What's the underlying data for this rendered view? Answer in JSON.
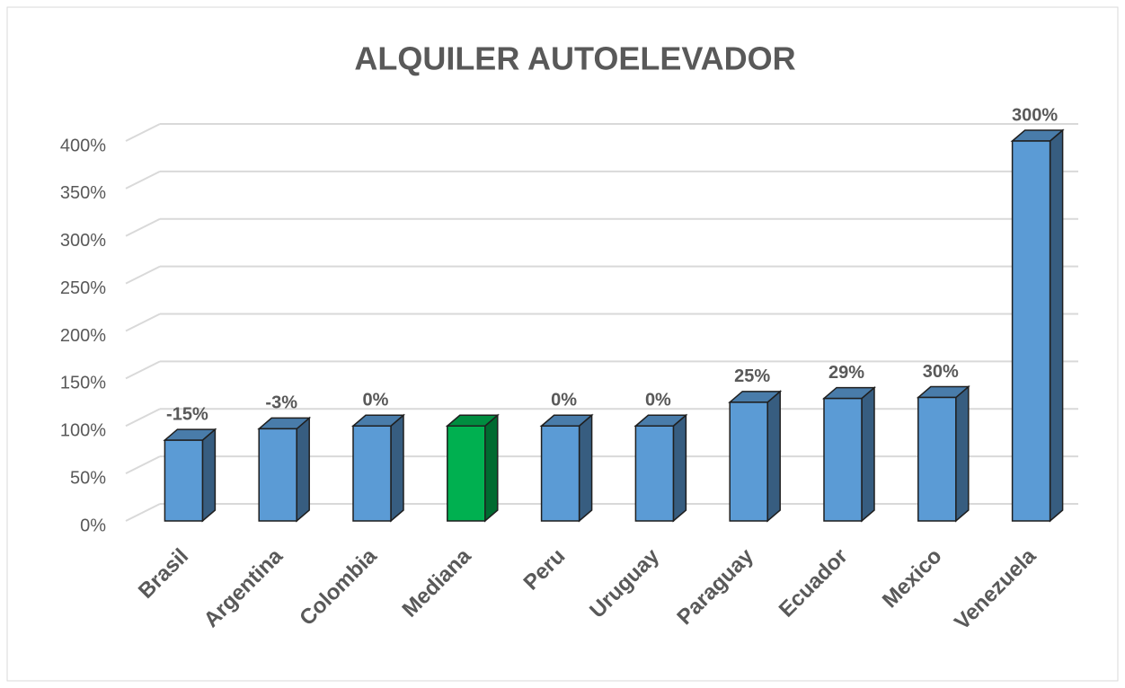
{
  "chart_data": {
    "type": "bar3d",
    "title": "ALQUILER AUTOELEVADOR",
    "categories": [
      "Brasil",
      "Argentina",
      "Colombia",
      "Mediana",
      "Peru",
      "Uruguay",
      "Paraguay",
      "Ecuador",
      "Mexico",
      "Venezuela"
    ],
    "values": [
      85,
      97,
      100,
      100,
      100,
      100,
      125,
      129,
      130,
      400
    ],
    "value_labels": [
      "-15%",
      "-3%",
      "0%",
      null,
      "0%",
      "0%",
      "25%",
      "29%",
      "30%",
      "300%"
    ],
    "colors": [
      "#5b9bd5",
      "#5b9bd5",
      "#5b9bd5",
      "#00b050",
      "#5b9bd5",
      "#5b9bd5",
      "#5b9bd5",
      "#5b9bd5",
      "#5b9bd5",
      "#5b9bd5"
    ],
    "ylim": [
      0,
      400
    ],
    "yticks": [
      {
        "value": 0,
        "label": "0%"
      },
      {
        "value": 50,
        "label": "50%"
      },
      {
        "value": 100,
        "label": "100%"
      },
      {
        "value": 150,
        "label": "150%"
      },
      {
        "value": 200,
        "label": "200%"
      },
      {
        "value": 250,
        "label": "250%"
      },
      {
        "value": 300,
        "label": "300%"
      },
      {
        "value": 350,
        "label": "350%"
      },
      {
        "value": 400,
        "label": "400%"
      }
    ],
    "grid": true
  }
}
